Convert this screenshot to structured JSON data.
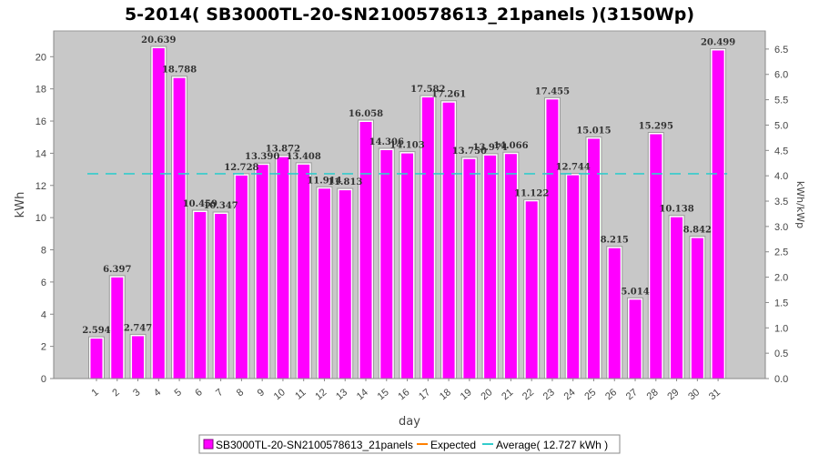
{
  "chart_data": {
    "type": "bar",
    "title": "5-2014( SB3000TL-20-SN2100578613_21panels )(3150Wp)",
    "xlabel": "day",
    "ylabel": "kWh",
    "y2label": "kWh/kWp",
    "categories": [
      "1",
      "2",
      "3",
      "4",
      "5",
      "6",
      "7",
      "8",
      "9",
      "10",
      "11",
      "12",
      "13",
      "14",
      "15",
      "16",
      "17",
      "18",
      "19",
      "20",
      "21",
      "22",
      "23",
      "24",
      "25",
      "26",
      "27",
      "28",
      "29",
      "30",
      "31"
    ],
    "series": [
      {
        "name": "SB3000TL-20-SN2100578613_21panels",
        "color": "#ff00ff",
        "values": [
          2.594,
          6.397,
          2.747,
          20.639,
          18.788,
          10.459,
          10.347,
          12.728,
          13.39,
          13.872,
          13.408,
          11.914,
          11.813,
          16.058,
          14.306,
          14.103,
          17.582,
          17.261,
          13.75,
          13.974,
          14.066,
          11.122,
          17.455,
          12.744,
          15.015,
          8.215,
          5.014,
          15.295,
          10.138,
          8.842,
          20.499
        ],
        "value_labels": [
          "2.594",
          "6.397",
          "2.747",
          "20.639",
          "18.788",
          "10.459",
          "10.347",
          "12.728",
          "13.390",
          "13.872",
          "13.408",
          "11.914",
          "11.813",
          "16.058",
          "14.306",
          "14.103",
          "17.582",
          "17.261",
          "13.750",
          "13.974",
          "14.066",
          "11.122",
          "17.455",
          "12.744",
          "15.015",
          "8.215",
          "5.014",
          "15.295",
          "10.138",
          "8.842",
          "20.499"
        ]
      }
    ],
    "average": {
      "value": 12.727,
      "color": "#33cccc"
    },
    "expected": {
      "color": "#ff8000"
    },
    "ylim": [
      0,
      21.6
    ],
    "yticks": [
      0,
      2,
      4,
      6,
      8,
      10,
      12,
      14,
      16,
      18,
      20
    ],
    "y2_per_kwh": 0.31746,
    "y2ticks": [
      0.0,
      0.5,
      1.0,
      1.5,
      2.0,
      2.5,
      3.0,
      3.5,
      4.0,
      4.5,
      5.0,
      5.5,
      6.0,
      6.5
    ],
    "grid": false,
    "legend": {
      "position": "bottom",
      "entries": [
        "SB3000TL-20-SN2100578613_21panels",
        "Expected",
        "Average( 12.727 kWh )"
      ]
    }
  }
}
